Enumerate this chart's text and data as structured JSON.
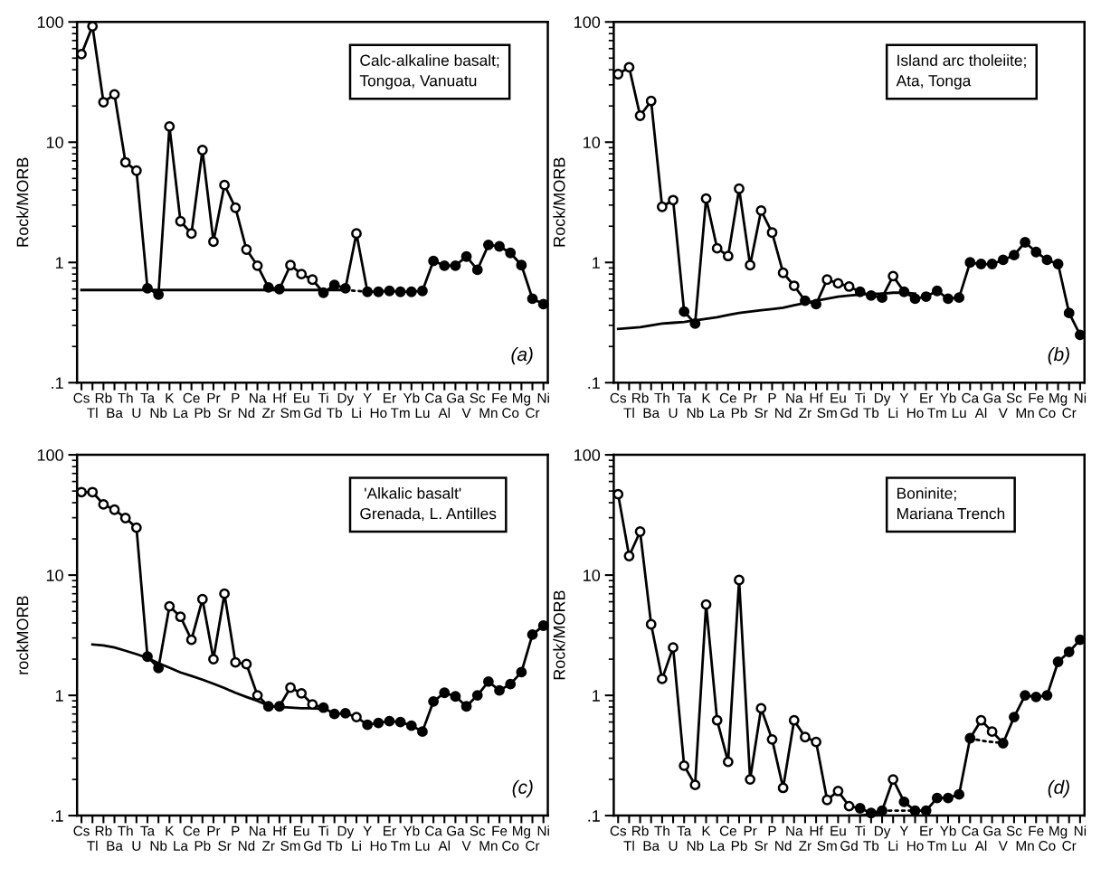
{
  "chart_data": [
    {
      "type": "line",
      "ylabel": "Rock/MORB",
      "log": "y",
      "ylim": [
        0.1,
        100
      ],
      "yticks": [
        {
          "value": 0.1,
          "label": ".1"
        },
        {
          "value": 1,
          "label": "1"
        },
        {
          "value": 10,
          "label": "10"
        },
        {
          "value": 100,
          "label": "100"
        }
      ],
      "grid": false,
      "legend": false,
      "annotations": [
        "Calc-alkaline basalt;\nTongoa, Vanuatu",
        "(a)"
      ],
      "categories": [
        "Cs",
        "Tl",
        "Rb",
        "Ba",
        "Th",
        "U",
        "Ta",
        "Nb",
        "K",
        "La",
        "Ce",
        "Pb",
        "Pr",
        "Sr",
        "P",
        "Nd",
        "Na",
        "Zr",
        "Hf",
        "Sm",
        "Eu",
        "Gd",
        "Ti",
        "Tb",
        "Dy",
        "Li",
        "Y",
        "Ho",
        "Er",
        "Tm",
        "Yb",
        "Lu",
        "Ca",
        "Al",
        "Ga",
        "V",
        "Sc",
        "Mn",
        "Fe",
        "Co",
        "Mg",
        "Cr",
        "Ni"
      ],
      "series": [
        {
          "type": "line",
          "color": "#000000",
          "line_style": "solid",
          "values": [
            54,
            92,
            21.5,
            25,
            6.8,
            5.8,
            0.61,
            0.54,
            13.5,
            2.2,
            1.74,
            8.6,
            1.49,
            4.4,
            2.85,
            1.28,
            0.94,
            0.62,
            0.6,
            0.95,
            0.8,
            0.72,
            0.56,
            0.65,
            0.61,
            1.74,
            0.57,
            0.57,
            0.58,
            0.57,
            0.57,
            0.58,
            1.03,
            0.94,
            0.94,
            1.12,
            0.87,
            1.4,
            1.36,
            1.2,
            0.95,
            0.5,
            0.45
          ]
        },
        {
          "type": "line",
          "color": "#000000",
          "line_style": "solid",
          "values": [
            0.59,
            0.59,
            0.59,
            0.59,
            0.59,
            0.59,
            0.59,
            0.59,
            0.59,
            0.59,
            0.59,
            0.59,
            0.59,
            0.59,
            0.59,
            0.59,
            0.59,
            0.59,
            0.59,
            0.59,
            0.59,
            0.59,
            0.59,
            0.59,
            0.59,
            null,
            null,
            null,
            null,
            null,
            null,
            null,
            null,
            null,
            null,
            null,
            null,
            null,
            null,
            null,
            null,
            null,
            null
          ]
        },
        {
          "type": "line",
          "color": "#000000",
          "line_style": "dotted",
          "values": [
            null,
            null,
            null,
            null,
            null,
            null,
            null,
            null,
            null,
            null,
            null,
            null,
            null,
            null,
            null,
            null,
            null,
            null,
            null,
            null,
            null,
            null,
            null,
            null,
            0.59,
            0.58,
            0.57,
            null,
            null,
            null,
            null,
            null,
            null,
            null,
            null,
            null,
            null,
            null,
            null,
            null,
            null,
            null,
            null
          ]
        },
        {
          "type": "scatter",
          "marker": "circle",
          "color": "#ffffff",
          "values": [
            54,
            92,
            21.5,
            25,
            6.8,
            5.8,
            null,
            null,
            13.5,
            2.2,
            1.74,
            8.6,
            1.49,
            4.4,
            2.85,
            1.28,
            0.94,
            null,
            null,
            0.95,
            0.8,
            0.72,
            null,
            null,
            null,
            1.74,
            null,
            null,
            null,
            null,
            null,
            null,
            null,
            null,
            null,
            null,
            null,
            null,
            null,
            null,
            null,
            null,
            null
          ]
        },
        {
          "type": "scatter",
          "marker": "circle",
          "color": "#000000",
          "values": [
            null,
            null,
            null,
            null,
            null,
            null,
            0.61,
            0.54,
            null,
            null,
            null,
            null,
            null,
            null,
            null,
            null,
            null,
            0.62,
            0.6,
            null,
            null,
            null,
            0.56,
            0.65,
            0.61,
            null,
            0.57,
            0.57,
            0.58,
            0.57,
            0.57,
            0.58,
            1.03,
            0.94,
            0.94,
            1.12,
            0.87,
            1.4,
            1.36,
            1.2,
            0.95,
            0.5,
            0.45
          ]
        }
      ]
    },
    {
      "type": "line",
      "ylabel": "Rock/MORB",
      "log": "y",
      "ylim": [
        0.1,
        100
      ],
      "yticks": [
        {
          "value": 0.1,
          "label": ".1"
        },
        {
          "value": 1,
          "label": "1"
        },
        {
          "value": 10,
          "label": "10"
        },
        {
          "value": 100,
          "label": "100"
        }
      ],
      "grid": false,
      "legend": false,
      "annotations": [
        "Island arc tholeiite;\nAta, Tonga",
        "(b)"
      ],
      "categories": [
        "Cs",
        "Tl",
        "Rb",
        "Ba",
        "Th",
        "U",
        "Ta",
        "Nb",
        "K",
        "La",
        "Ce",
        "Pb",
        "Pr",
        "Sr",
        "P",
        "Nd",
        "Na",
        "Zr",
        "Hf",
        "Sm",
        "Eu",
        "Gd",
        "Ti",
        "Tb",
        "Dy",
        "Li",
        "Y",
        "Ho",
        "Er",
        "Tm",
        "Yb",
        "Lu",
        "Ca",
        "Al",
        "Ga",
        "V",
        "Sc",
        "Mn",
        "Fe",
        "Co",
        "Mg",
        "Cr",
        "Ni"
      ],
      "series": [
        {
          "type": "line",
          "color": "#000000",
          "line_style": "solid",
          "values": [
            36.8,
            42,
            16.6,
            22,
            2.9,
            3.3,
            0.39,
            0.31,
            3.4,
            1.31,
            1.13,
            4.1,
            0.95,
            2.7,
            1.77,
            0.82,
            0.64,
            0.48,
            0.45,
            0.72,
            0.67,
            0.63,
            0.57,
            0.53,
            0.51,
            0.77,
            0.57,
            0.5,
            0.52,
            0.58,
            0.5,
            0.51,
            1.0,
            0.97,
            0.97,
            1.05,
            1.15,
            1.47,
            1.22,
            1.05,
            0.97,
            0.38,
            0.25
          ]
        },
        {
          "type": "line",
          "color": "#000000",
          "line_style": "solid",
          "values": [
            0.28,
            0.285,
            0.29,
            0.3,
            0.31,
            0.315,
            0.32,
            0.33,
            0.34,
            0.35,
            0.365,
            0.38,
            0.39,
            0.4,
            0.41,
            0.42,
            0.44,
            0.46,
            0.48,
            0.5,
            0.52,
            0.53,
            0.54,
            0.55,
            0.55,
            0.56,
            0.56,
            0.55,
            null,
            null,
            null,
            null,
            null,
            null,
            null,
            null,
            null,
            null,
            null,
            null,
            null,
            null,
            null
          ]
        },
        {
          "type": "scatter",
          "marker": "circle",
          "color": "#ffffff",
          "values": [
            36.8,
            42,
            16.6,
            22,
            2.9,
            3.3,
            null,
            null,
            3.4,
            1.31,
            1.13,
            4.1,
            0.95,
            2.7,
            1.77,
            0.82,
            0.64,
            null,
            null,
            0.72,
            0.67,
            0.63,
            null,
            null,
            null,
            0.77,
            null,
            null,
            null,
            null,
            null,
            null,
            null,
            null,
            null,
            null,
            null,
            null,
            null,
            null,
            null,
            null,
            null
          ]
        },
        {
          "type": "scatter",
          "marker": "circle",
          "color": "#000000",
          "values": [
            null,
            null,
            null,
            null,
            null,
            null,
            0.39,
            0.31,
            null,
            null,
            null,
            null,
            null,
            null,
            null,
            null,
            null,
            0.48,
            0.45,
            null,
            null,
            null,
            0.57,
            0.53,
            0.51,
            null,
            0.57,
            0.5,
            0.52,
            0.58,
            0.5,
            0.51,
            1.0,
            0.97,
            0.97,
            1.05,
            1.15,
            1.47,
            1.22,
            1.05,
            0.97,
            0.38,
            0.25
          ]
        }
      ]
    },
    {
      "type": "line",
      "ylabel": "rockMORB",
      "log": "y",
      "ylim": [
        0.1,
        100
      ],
      "yticks": [
        {
          "value": 0.1,
          "label": ".1"
        },
        {
          "value": 1,
          "label": "1"
        },
        {
          "value": 10,
          "label": "10"
        },
        {
          "value": 100,
          "label": "100"
        }
      ],
      "grid": false,
      "legend": false,
      "annotations": [
        " 'Alkalic basalt'\nGrenada, L. Antilles",
        "(c)"
      ],
      "categories": [
        "Cs",
        "Tl",
        "Rb",
        "Ba",
        "Th",
        "U",
        "Ta",
        "Nb",
        "K",
        "La",
        "Ce",
        "Pb",
        "Pr",
        "Sr",
        "P",
        "Nd",
        "Na",
        "Zr",
        "Hf",
        "Sm",
        "Eu",
        "Gd",
        "Ti",
        "Tb",
        "Dy",
        "Li",
        "Y",
        "Ho",
        "Er",
        "Tm",
        "Yb",
        "Lu",
        "Ca",
        "Al",
        "Ga",
        "V",
        "Sc",
        "Mn",
        "Fe",
        "Co",
        "Mg",
        "Cr",
        "Ni"
      ],
      "series": [
        {
          "type": "line",
          "color": "#000000",
          "line_style": "solid",
          "values": [
            49,
            49,
            38.7,
            35,
            29.8,
            24.8,
            2.1,
            1.69,
            5.5,
            4.5,
            2.9,
            6.3,
            2.0,
            7.0,
            1.88,
            1.82,
            1.0,
            0.81,
            0.81,
            1.16,
            1.04,
            0.84,
            0.79,
            0.7,
            0.71,
            0.66,
            0.57,
            0.59,
            0.61,
            0.6,
            0.56,
            0.5,
            0.89,
            1.05,
            0.98,
            0.81,
            1.0,
            1.3,
            1.1,
            1.24,
            1.56,
            3.2,
            3.8
          ]
        },
        {
          "type": "line",
          "color": "#000000",
          "line_style": "solid",
          "values": [
            null,
            2.65,
            2.6,
            2.5,
            2.35,
            2.2,
            2.05,
            1.85,
            1.7,
            1.55,
            1.45,
            1.35,
            1.25,
            1.15,
            1.05,
            0.97,
            0.9,
            0.82,
            0.8,
            0.79,
            0.78,
            0.78,
            0.77,
            null,
            null,
            null,
            null,
            null,
            null,
            null,
            null,
            null,
            null,
            null,
            null,
            null,
            null,
            null,
            null,
            null,
            null,
            null,
            null
          ]
        },
        {
          "type": "scatter",
          "marker": "circle",
          "color": "#ffffff",
          "values": [
            49,
            49,
            38.7,
            35,
            29.8,
            24.8,
            null,
            null,
            5.5,
            4.5,
            2.9,
            6.3,
            2.0,
            7.0,
            1.88,
            1.82,
            1.0,
            null,
            null,
            1.16,
            1.04,
            0.84,
            null,
            null,
            null,
            0.66,
            null,
            null,
            null,
            null,
            null,
            null,
            null,
            null,
            null,
            null,
            null,
            null,
            null,
            null,
            null,
            null,
            null
          ]
        },
        {
          "type": "scatter",
          "marker": "circle",
          "color": "#000000",
          "values": [
            null,
            null,
            null,
            null,
            null,
            null,
            2.1,
            1.69,
            null,
            null,
            null,
            null,
            null,
            null,
            null,
            null,
            null,
            0.81,
            0.81,
            null,
            null,
            null,
            0.79,
            0.7,
            0.71,
            null,
            0.57,
            0.59,
            0.61,
            0.6,
            0.56,
            0.5,
            0.89,
            1.05,
            0.98,
            0.81,
            1.0,
            1.3,
            1.1,
            1.24,
            1.56,
            3.2,
            3.8
          ]
        }
      ]
    },
    {
      "type": "line",
      "ylabel": "Rock/MORB",
      "log": "y",
      "ylim": [
        0.1,
        100
      ],
      "yticks": [
        {
          "value": 0.1,
          "label": ".1"
        },
        {
          "value": 1,
          "label": "1"
        },
        {
          "value": 10,
          "label": "10"
        },
        {
          "value": 100,
          "label": "100"
        }
      ],
      "grid": false,
      "legend": false,
      "annotations": [
        "Boninite;\nMariana Trench",
        "(d)"
      ],
      "categories": [
        "Cs",
        "Tl",
        "Rb",
        "Ba",
        "Th",
        "U",
        "Ta",
        "Nb",
        "K",
        "La",
        "Ce",
        "Pb",
        "Pr",
        "Sr",
        "P",
        "Nd",
        "Na",
        "Zr",
        "Hf",
        "Sm",
        "Eu",
        "Gd",
        "Ti",
        "Tb",
        "Dy",
        "Li",
        "Y",
        "Ho",
        "Er",
        "Tm",
        "Yb",
        "Lu",
        "Ca",
        "Al",
        "Ga",
        "V",
        "Sc",
        "Mn",
        "Fe",
        "Co",
        "Mg",
        "Cr",
        "Ni"
      ],
      "series": [
        {
          "type": "line",
          "color": "#000000",
          "line_style": "solid",
          "values": [
            47,
            14.4,
            23,
            3.9,
            1.37,
            2.5,
            0.26,
            0.18,
            5.7,
            0.62,
            0.28,
            9.1,
            0.2,
            0.78,
            0.43,
            0.17,
            0.62,
            0.45,
            0.41,
            0.135,
            0.16,
            0.12,
            0.115,
            0.105,
            0.11,
            0.2,
            0.13,
            0.11,
            0.11,
            0.14,
            0.14,
            0.15,
            0.44,
            0.62,
            0.5,
            0.4,
            0.66,
            1.0,
            0.97,
            1.0,
            1.9,
            2.3,
            2.9
          ]
        },
        {
          "type": "line",
          "color": "#000000",
          "line_style": "solid",
          "values": [
            null,
            null,
            null,
            null,
            null,
            null,
            null,
            null,
            null,
            null,
            null,
            null,
            null,
            null,
            null,
            null,
            null,
            null,
            null,
            null,
            null,
            0.1,
            0.1,
            0.103,
            0.106,
            null,
            null,
            null,
            null,
            null,
            null,
            null,
            null,
            null,
            null,
            null,
            null,
            null,
            null,
            null,
            null,
            null,
            null
          ]
        },
        {
          "type": "line",
          "color": "#000000",
          "line_style": "dotted",
          "values": [
            null,
            null,
            null,
            null,
            null,
            null,
            null,
            null,
            null,
            null,
            null,
            null,
            null,
            null,
            null,
            null,
            null,
            null,
            null,
            null,
            null,
            null,
            null,
            null,
            0.11,
            0.11,
            0.11,
            0.11,
            null,
            null,
            null,
            null,
            0.44,
            0.42,
            0.41,
            0.4,
            null,
            null,
            null,
            null,
            null,
            null,
            null
          ]
        },
        {
          "type": "scatter",
          "marker": "circle",
          "color": "#ffffff",
          "values": [
            47,
            14.4,
            23,
            3.9,
            1.37,
            2.5,
            0.26,
            0.18,
            5.7,
            0.62,
            0.28,
            9.1,
            0.2,
            0.78,
            0.43,
            0.17,
            0.62,
            0.45,
            0.41,
            0.135,
            0.16,
            0.12,
            null,
            null,
            null,
            0.2,
            null,
            null,
            null,
            null,
            null,
            null,
            null,
            0.62,
            0.5,
            null,
            null,
            null,
            null,
            null,
            null,
            null,
            null
          ]
        },
        {
          "type": "scatter",
          "marker": "circle",
          "color": "#000000",
          "values": [
            null,
            null,
            null,
            null,
            null,
            null,
            null,
            null,
            null,
            null,
            null,
            null,
            null,
            null,
            null,
            null,
            null,
            null,
            null,
            null,
            null,
            null,
            0.115,
            0.105,
            0.11,
            null,
            0.13,
            0.11,
            0.11,
            0.14,
            0.14,
            0.15,
            0.44,
            null,
            null,
            0.4,
            0.66,
            1.0,
            0.97,
            1.0,
            1.9,
            2.3,
            2.9
          ]
        }
      ]
    }
  ]
}
